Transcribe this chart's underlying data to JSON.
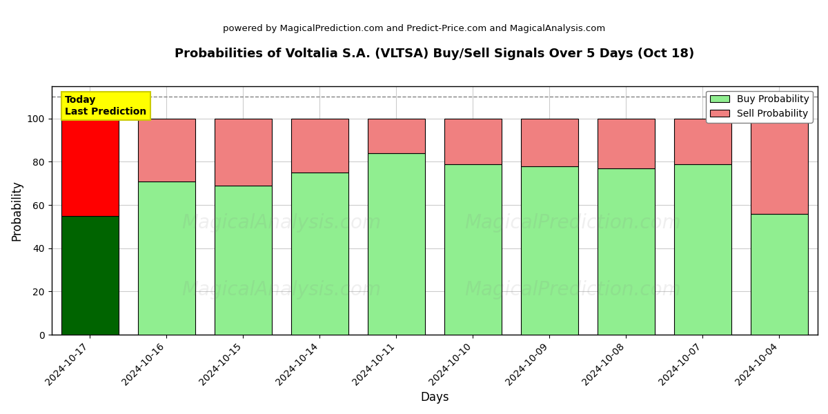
{
  "title": "Probabilities of Voltalia S.A. (VLTSA) Buy/Sell Signals Over 5 Days (Oct 18)",
  "subtitle": "powered by MagicalPrediction.com and Predict-Price.com and MagicalAnalysis.com",
  "xlabel": "Days",
  "ylabel": "Probability",
  "dates": [
    "2024-10-17",
    "2024-10-16",
    "2024-10-15",
    "2024-10-14",
    "2024-10-11",
    "2024-10-10",
    "2024-10-09",
    "2024-10-08",
    "2024-10-07",
    "2024-10-04"
  ],
  "buy_probs": [
    55,
    71,
    69,
    75,
    84,
    79,
    78,
    77,
    79,
    56
  ],
  "sell_probs": [
    45,
    29,
    31,
    25,
    16,
    21,
    22,
    23,
    21,
    44
  ],
  "today_bar_buy_color": "#006400",
  "today_bar_sell_color": "#FF0000",
  "buy_color": "#90EE90",
  "sell_color": "#F08080",
  "buy_legend_color": "#90EE90",
  "sell_legend_color": "#F08080",
  "today_annotation": "Today\nLast Prediction",
  "annotation_bg": "#FFFF00",
  "bar_edge_color": "black",
  "bar_linewidth": 0.8,
  "ylim": [
    0,
    115
  ],
  "dashed_line_y": 110,
  "grid_color": "#CCCCCC",
  "watermark_alpha": 0.12,
  "background_color": "white",
  "figsize": [
    12,
    6
  ],
  "dpi": 100
}
